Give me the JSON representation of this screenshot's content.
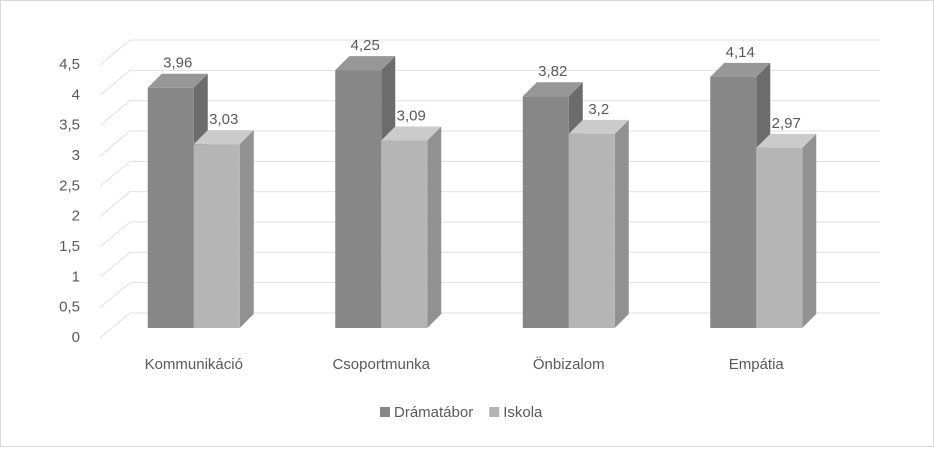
{
  "chart_data": {
    "type": "bar3d",
    "categories": [
      "Kommunikáció",
      "Csoportmunka",
      "Önbizalom",
      "Empátia"
    ],
    "series": [
      {
        "name": "Drámatábor",
        "color": "#878787",
        "values": [
          3.96,
          4.25,
          3.82,
          4.14
        ],
        "value_labels": [
          "3,96",
          "4,25",
          "3,82",
          "4,14"
        ]
      },
      {
        "name": "Iskola",
        "color": "#b5b5b5",
        "values": [
          3.03,
          3.09,
          3.2,
          2.97
        ],
        "value_labels": [
          "3,03",
          "3,09",
          "3,2",
          "2,97"
        ]
      }
    ],
    "ylim": [
      0,
      4.5
    ],
    "yticks": [
      0,
      {
        "value": 0.5,
        "label": "0,5"
      },
      1,
      {
        "value": 1.5,
        "label": "1,5"
      },
      2,
      {
        "value": 2.5,
        "label": "2,5"
      },
      3,
      {
        "value": 3.5,
        "label": "3,5"
      },
      4,
      {
        "value": 4.5,
        "label": "4,5"
      }
    ],
    "grid": true,
    "legend": "bottom"
  }
}
